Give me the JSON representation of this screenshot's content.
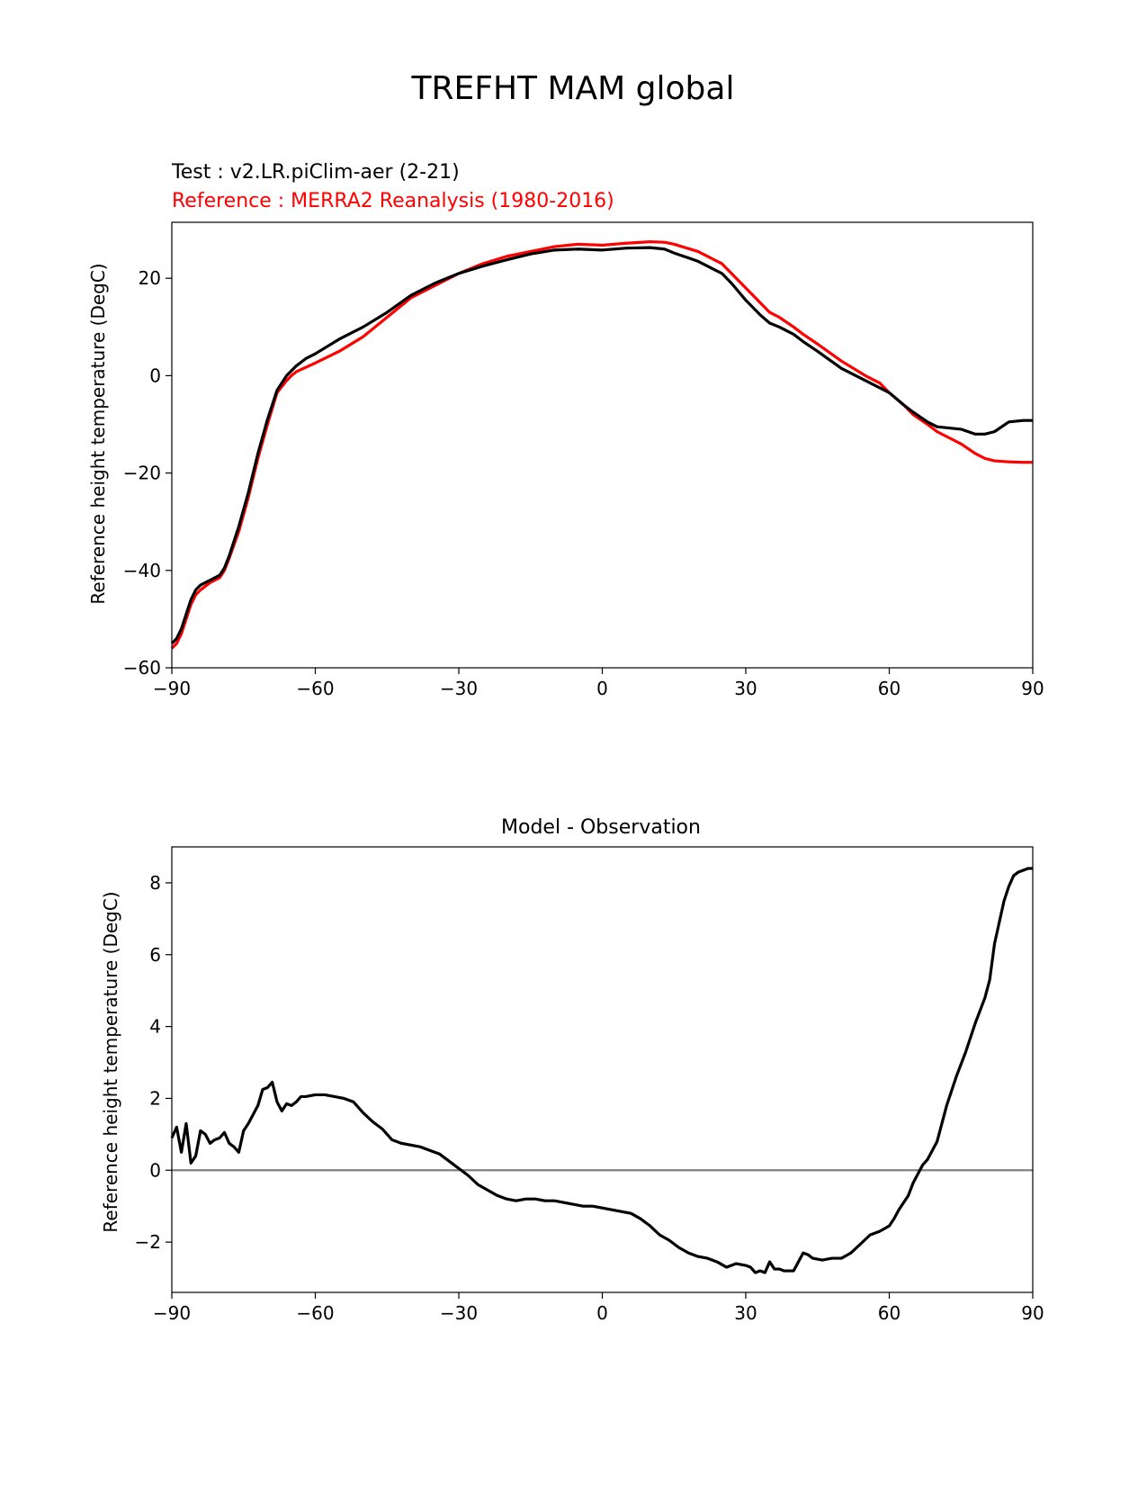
{
  "figure": {
    "title": "TREFHT MAM global"
  },
  "chart_data": [
    {
      "type": "line",
      "title": "",
      "test_label": "Test : v2.LR.piClim-aer (2-21)",
      "reference_label": "Reference : MERRA2 Reanalysis (1980-2016)",
      "xlabel": "",
      "ylabel": "Reference height temperature (DegC)",
      "xlim": [
        -90,
        90
      ],
      "ylim": [
        -60,
        31.5
      ],
      "xticks": [
        -90,
        -60,
        -30,
        0,
        30,
        60,
        90
      ],
      "yticks": [
        -60,
        -40,
        -20,
        0,
        20
      ],
      "grid": false,
      "series": [
        {
          "color": "#ff0000",
          "x": [
            -90,
            -89,
            -88,
            -87,
            -86,
            -85,
            -84,
            -82,
            -80,
            -79,
            -78,
            -76,
            -74,
            -72,
            -70,
            -68,
            -66,
            -65,
            -64,
            -62,
            -60,
            -55,
            -50,
            -45,
            -40,
            -35,
            -30,
            -25,
            -20,
            -15,
            -10,
            -5,
            0,
            5,
            10,
            13,
            15,
            20,
            25,
            27,
            30,
            33,
            35,
            37,
            40,
            42,
            45,
            50,
            55,
            58,
            60,
            63,
            65,
            68,
            70,
            73,
            75,
            78,
            80,
            82,
            85,
            88,
            90
          ],
          "y": [
            -56,
            -55,
            -53,
            -50,
            -47,
            -45,
            -44,
            -42.5,
            -41.5,
            -40,
            -37.5,
            -32,
            -25,
            -17,
            -10,
            -3.5,
            -1,
            0,
            0.8,
            1.7,
            2.6,
            5,
            8,
            12,
            16,
            18.5,
            21,
            23,
            24.5,
            25.5,
            26.5,
            27,
            26.8,
            27.2,
            27.5,
            27.4,
            27,
            25.5,
            23,
            21,
            18,
            15,
            13,
            12,
            10,
            8.5,
            6.5,
            3,
            0,
            -1.5,
            -3.5,
            -6,
            -8,
            -10,
            -11.5,
            -13,
            -14,
            -16,
            -17,
            -17.5,
            -17.7,
            -17.8,
            -17.8
          ]
        },
        {
          "color": "#000000",
          "x": [
            -90,
            -89,
            -88,
            -87,
            -86,
            -85,
            -84,
            -82,
            -80,
            -79,
            -78,
            -76,
            -74,
            -72,
            -70,
            -68,
            -66,
            -65,
            -64,
            -62,
            -60,
            -55,
            -50,
            -45,
            -40,
            -35,
            -30,
            -25,
            -20,
            -15,
            -10,
            -5,
            0,
            5,
            10,
            13,
            15,
            20,
            25,
            27,
            30,
            33,
            35,
            37,
            40,
            42,
            45,
            50,
            55,
            58,
            60,
            63,
            65,
            68,
            70,
            73,
            75,
            78,
            80,
            82,
            85,
            88,
            90
          ],
          "y": [
            -55,
            -54,
            -52,
            -49,
            -46,
            -44,
            -43,
            -42,
            -41,
            -39.5,
            -37,
            -31,
            -24,
            -16,
            -9,
            -3,
            0,
            1,
            2,
            3.5,
            4.5,
            7.5,
            10,
            13,
            16.5,
            19,
            21,
            22.5,
            23.8,
            25,
            25.8,
            26,
            25.8,
            26.2,
            26.3,
            26,
            25.2,
            23.5,
            21,
            19,
            15.5,
            12.5,
            10.8,
            10,
            8.5,
            7,
            5,
            1.5,
            -1,
            -2.5,
            -3.5,
            -6,
            -7.5,
            -9.5,
            -10.5,
            -10.8,
            -11,
            -12,
            -12,
            -11.5,
            -9.5,
            -9.2,
            -9.2
          ]
        }
      ]
    },
    {
      "type": "line",
      "title": "Model - Observation",
      "xlabel": "",
      "ylabel": "Reference height temperature (DegC)",
      "xlim": [
        -90,
        90
      ],
      "ylim": [
        -3.4,
        9
      ],
      "xticks": [
        -90,
        -60,
        -30,
        0,
        30,
        60,
        90
      ],
      "yticks": [
        -2,
        0,
        2,
        4,
        6,
        8
      ],
      "grid": false,
      "zero_line_color": "#808080",
      "series": [
        {
          "color": "#000000",
          "x": [
            -90,
            -89,
            -88,
            -87,
            -86,
            -85,
            -84,
            -83,
            -82,
            -81,
            -80,
            -79,
            -78,
            -77,
            -76,
            -75,
            -74,
            -73,
            -72,
            -71,
            -70,
            -69,
            -68,
            -67,
            -66,
            -65,
            -64,
            -63,
            -62,
            -60,
            -58,
            -56,
            -54,
            -52,
            -50,
            -48,
            -46,
            -44,
            -42,
            -40,
            -38,
            -36,
            -34,
            -32,
            -30,
            -28,
            -26,
            -24,
            -22,
            -20,
            -18,
            -16,
            -14,
            -12,
            -10,
            -8,
            -6,
            -4,
            -2,
            0,
            2,
            4,
            6,
            8,
            10,
            12,
            14,
            16,
            18,
            20,
            22,
            24,
            26,
            28,
            30,
            31,
            32,
            33,
            34,
            35,
            36,
            37,
            38,
            40,
            41,
            42,
            43,
            44,
            46,
            48,
            50,
            52,
            54,
            56,
            58,
            60,
            61,
            62,
            63,
            64,
            65,
            66,
            67,
            68,
            69,
            70,
            72,
            74,
            76,
            78,
            80,
            81,
            82,
            83,
            84,
            85,
            86,
            87,
            88,
            89,
            90
          ],
          "y": [
            0.9,
            1.2,
            0.5,
            1.3,
            0.2,
            0.4,
            1.1,
            1.0,
            0.75,
            0.85,
            0.9,
            1.05,
            0.75,
            0.65,
            0.5,
            1.1,
            1.3,
            1.55,
            1.8,
            2.25,
            2.3,
            2.45,
            1.9,
            1.65,
            1.85,
            1.8,
            1.9,
            2.05,
            2.05,
            2.1,
            2.1,
            2.05,
            2.0,
            1.9,
            1.6,
            1.35,
            1.15,
            0.85,
            0.75,
            0.7,
            0.65,
            0.55,
            0.45,
            0.25,
            0.05,
            -0.15,
            -0.4,
            -0.55,
            -0.7,
            -0.8,
            -0.85,
            -0.8,
            -0.8,
            -0.85,
            -0.85,
            -0.9,
            -0.95,
            -1.0,
            -1.0,
            -1.05,
            -1.1,
            -1.15,
            -1.2,
            -1.35,
            -1.55,
            -1.8,
            -1.95,
            -2.15,
            -2.3,
            -2.4,
            -2.45,
            -2.55,
            -2.7,
            -2.6,
            -2.65,
            -2.7,
            -2.85,
            -2.8,
            -2.85,
            -2.55,
            -2.75,
            -2.75,
            -2.8,
            -2.8,
            -2.55,
            -2.3,
            -2.35,
            -2.45,
            -2.5,
            -2.45,
            -2.45,
            -2.3,
            -2.05,
            -1.8,
            -1.7,
            -1.55,
            -1.35,
            -1.1,
            -0.9,
            -0.7,
            -0.35,
            -0.1,
            0.15,
            0.3,
            0.55,
            0.8,
            1.8,
            2.6,
            3.3,
            4.1,
            4.8,
            5.3,
            6.3,
            6.9,
            7.5,
            7.9,
            8.2,
            8.3,
            8.35,
            8.4,
            8.4
          ]
        }
      ]
    }
  ]
}
